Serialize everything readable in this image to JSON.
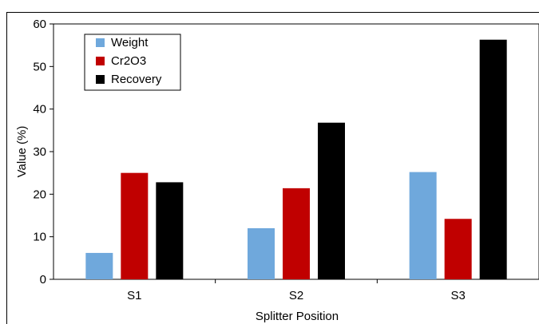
{
  "chart_data": {
    "type": "bar",
    "categories": [
      "S1",
      "S2",
      "S3"
    ],
    "series": [
      {
        "name": "Weight",
        "values": [
          6.2,
          12.0,
          25.2
        ],
        "color": "#6fa8dc"
      },
      {
        "name": "Cr2O3",
        "values": [
          25.0,
          21.4,
          14.2
        ],
        "color": "#c00000"
      },
      {
        "name": "Recovery",
        "values": [
          22.8,
          36.8,
          56.3
        ],
        "color": "#000000"
      }
    ],
    "title": "",
    "xlabel": "Splitter Position",
    "ylabel": "Value (%)",
    "ylim": [
      0,
      60
    ],
    "yticks": [
      0,
      10,
      20,
      30,
      40,
      50,
      60
    ],
    "grid": false,
    "legend": "top-left"
  }
}
